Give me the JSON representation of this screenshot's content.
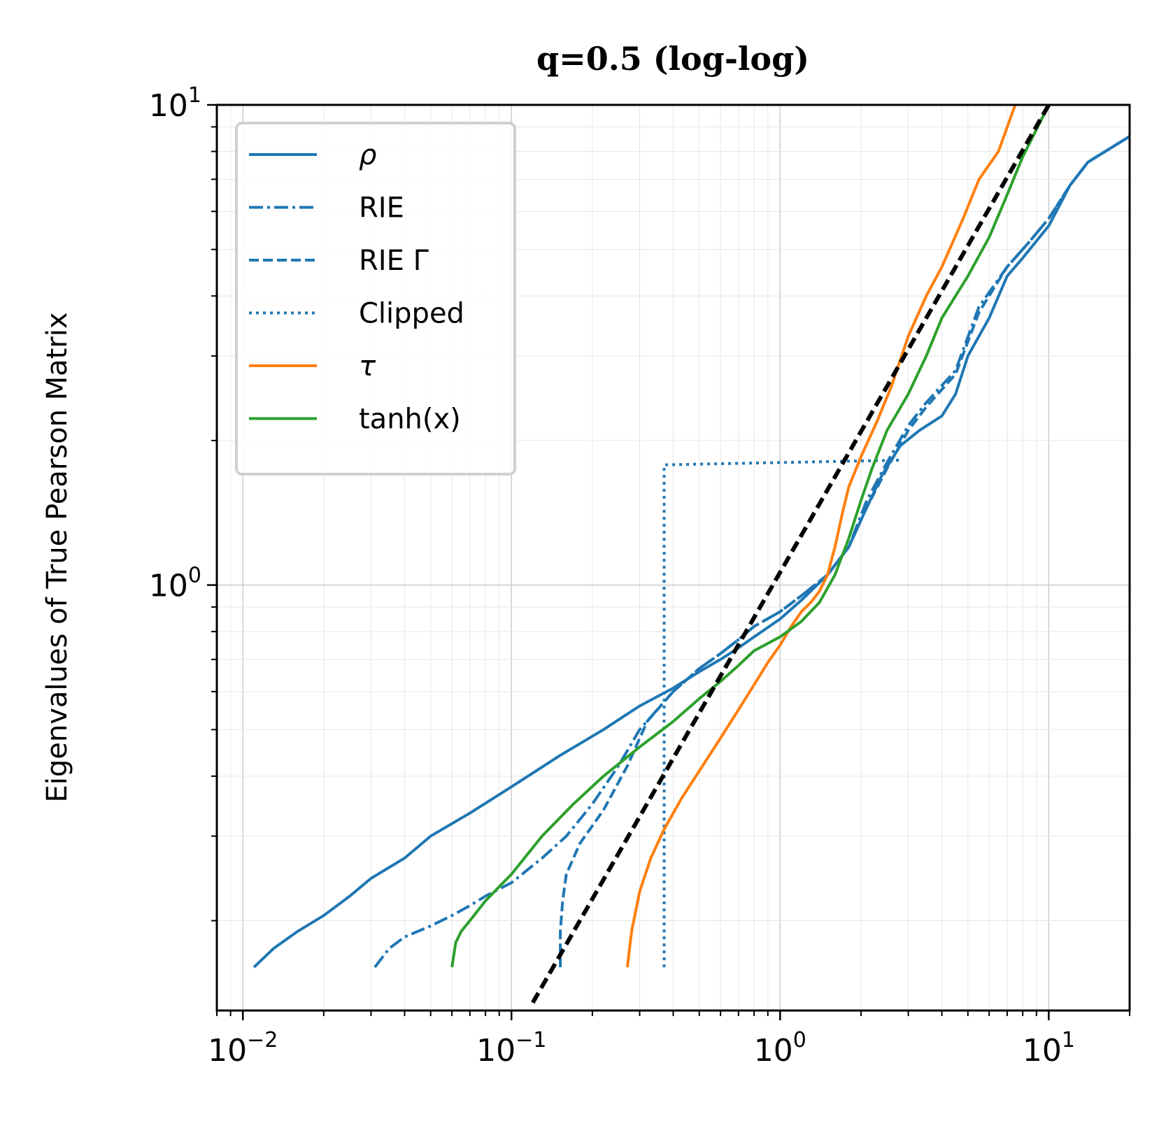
{
  "chart_data": {
    "type": "line",
    "title": "q=0.5 (log-log)",
    "xlabel": "",
    "ylabel": "Eigenvalues of True Pearson Matrix",
    "xscale": "log",
    "yscale": "log",
    "xlim": [
      0.008,
      20
    ],
    "ylim": [
      0.13,
      10
    ],
    "grid": true,
    "legend_position": "upper-left",
    "x_ticks": [
      {
        "value": 0.01,
        "base": "10",
        "exp": "−2"
      },
      {
        "value": 0.1,
        "base": "10",
        "exp": "−1"
      },
      {
        "value": 1,
        "base": "10",
        "exp": "0"
      },
      {
        "value": 10,
        "base": "10",
        "exp": "1"
      }
    ],
    "y_ticks": [
      {
        "value": 1,
        "base": "10",
        "exp": "0"
      },
      {
        "value": 10,
        "base": "10",
        "exp": "1"
      }
    ],
    "series": [
      {
        "name": "ρ",
        "legend_label": "ρ",
        "italic": true,
        "color": "#1f77b4",
        "dash": "solid",
        "points": [
          [
            0.011,
            0.16
          ],
          [
            0.013,
            0.175
          ],
          [
            0.016,
            0.19
          ],
          [
            0.02,
            0.205
          ],
          [
            0.025,
            0.225
          ],
          [
            0.03,
            0.245
          ],
          [
            0.04,
            0.27
          ],
          [
            0.05,
            0.3
          ],
          [
            0.07,
            0.335
          ],
          [
            0.1,
            0.38
          ],
          [
            0.15,
            0.44
          ],
          [
            0.22,
            0.5
          ],
          [
            0.3,
            0.56
          ],
          [
            0.4,
            0.61
          ],
          [
            0.5,
            0.66
          ],
          [
            0.6,
            0.7
          ],
          [
            0.7,
            0.74
          ],
          [
            0.8,
            0.78
          ],
          [
            1.0,
            0.85
          ],
          [
            1.2,
            0.93
          ],
          [
            1.5,
            1.05
          ],
          [
            1.8,
            1.2
          ],
          [
            2.1,
            1.45
          ],
          [
            2.4,
            1.7
          ],
          [
            2.8,
            1.95
          ],
          [
            3.3,
            2.1
          ],
          [
            4.0,
            2.25
          ],
          [
            4.5,
            2.5
          ],
          [
            5.0,
            3.0
          ],
          [
            6.0,
            3.6
          ],
          [
            7.0,
            4.4
          ],
          [
            8.0,
            4.8
          ],
          [
            10.0,
            5.6
          ],
          [
            12.0,
            6.8
          ],
          [
            14.0,
            7.6
          ],
          [
            20.0,
            8.6
          ]
        ]
      },
      {
        "name": "RIE",
        "legend_label": "RIE",
        "italic": false,
        "color": "#1f77b4",
        "dash": "dashdot",
        "points": [
          [
            0.031,
            0.16
          ],
          [
            0.035,
            0.175
          ],
          [
            0.04,
            0.185
          ],
          [
            0.05,
            0.195
          ],
          [
            0.06,
            0.205
          ],
          [
            0.07,
            0.215
          ],
          [
            0.08,
            0.225
          ],
          [
            0.1,
            0.24
          ],
          [
            0.13,
            0.27
          ],
          [
            0.16,
            0.3
          ],
          [
            0.2,
            0.35
          ],
          [
            0.25,
            0.42
          ],
          [
            0.3,
            0.5
          ],
          [
            0.4,
            0.6
          ],
          [
            0.5,
            0.67
          ],
          [
            0.6,
            0.72
          ],
          [
            0.7,
            0.77
          ],
          [
            0.8,
            0.82
          ],
          [
            1.0,
            0.88
          ],
          [
            1.2,
            0.95
          ],
          [
            1.5,
            1.05
          ],
          [
            1.8,
            1.2
          ],
          [
            2.1,
            1.5
          ],
          [
            2.5,
            1.8
          ],
          [
            3.0,
            2.15
          ],
          [
            3.5,
            2.4
          ],
          [
            4.5,
            2.8
          ],
          [
            5.5,
            3.8
          ],
          [
            7.0,
            4.6
          ],
          [
            8.5,
            5.2
          ],
          [
            10.0,
            5.8
          ],
          [
            12.0,
            6.8
          ],
          [
            14.0,
            7.6
          ],
          [
            20.0,
            8.6
          ]
        ]
      },
      {
        "name": "RIE Γ",
        "legend_label": "RIE Γ",
        "italic": false,
        "color": "#1f77b4",
        "dash": "dashed",
        "points": [
          [
            0.152,
            0.16
          ],
          [
            0.152,
            0.19
          ],
          [
            0.155,
            0.22
          ],
          [
            0.16,
            0.25
          ],
          [
            0.18,
            0.29
          ],
          [
            0.22,
            0.34
          ],
          [
            0.27,
            0.42
          ],
          [
            0.32,
            0.52
          ],
          [
            0.4,
            0.6
          ],
          [
            0.5,
            0.67
          ],
          [
            0.6,
            0.72
          ],
          [
            0.7,
            0.77
          ],
          [
            0.8,
            0.82
          ],
          [
            1.0,
            0.88
          ],
          [
            1.2,
            0.95
          ],
          [
            1.5,
            1.05
          ],
          [
            1.8,
            1.2
          ],
          [
            2.1,
            1.45
          ],
          [
            2.5,
            1.75
          ],
          [
            3.0,
            2.1
          ],
          [
            3.5,
            2.35
          ],
          [
            4.5,
            2.75
          ],
          [
            5.5,
            3.7
          ],
          [
            7.0,
            4.6
          ],
          [
            8.5,
            5.2
          ],
          [
            10.0,
            5.8
          ],
          [
            12.0,
            6.8
          ],
          [
            14.0,
            7.6
          ],
          [
            20.0,
            8.6
          ]
        ]
      },
      {
        "name": "Clipped",
        "legend_label": "Clipped",
        "italic": false,
        "color": "#1f77b4",
        "dash": "dotted",
        "points": [
          [
            0.37,
            0.16
          ],
          [
            0.37,
            1.78
          ],
          [
            2.8,
            1.82
          ]
        ]
      },
      {
        "name": "τ",
        "legend_label": "τ",
        "italic": true,
        "color": "#ff7f0e",
        "dash": "solid",
        "points": [
          [
            0.27,
            0.16
          ],
          [
            0.28,
            0.19
          ],
          [
            0.3,
            0.23
          ],
          [
            0.33,
            0.27
          ],
          [
            0.37,
            0.31
          ],
          [
            0.43,
            0.36
          ],
          [
            0.5,
            0.41
          ],
          [
            0.6,
            0.48
          ],
          [
            0.7,
            0.55
          ],
          [
            0.8,
            0.62
          ],
          [
            0.9,
            0.69
          ],
          [
            1.0,
            0.75
          ],
          [
            1.1,
            0.82
          ],
          [
            1.2,
            0.88
          ],
          [
            1.3,
            0.92
          ],
          [
            1.4,
            0.97
          ],
          [
            1.5,
            1.05
          ],
          [
            1.6,
            1.2
          ],
          [
            1.7,
            1.4
          ],
          [
            1.8,
            1.6
          ],
          [
            2.0,
            1.85
          ],
          [
            2.3,
            2.2
          ],
          [
            2.6,
            2.6
          ],
          [
            3.0,
            3.3
          ],
          [
            3.5,
            4.0
          ],
          [
            4.0,
            4.6
          ],
          [
            4.8,
            5.8
          ],
          [
            5.5,
            7.0
          ],
          [
            6.5,
            8.0
          ],
          [
            7.5,
            10.0
          ]
        ]
      },
      {
        "name": "tanh(x)",
        "legend_label": "tanh(x)",
        "italic": false,
        "color": "#2ca02c",
        "dash": "solid",
        "points": [
          [
            0.06,
            0.16
          ],
          [
            0.062,
            0.18
          ],
          [
            0.065,
            0.19
          ],
          [
            0.07,
            0.2
          ],
          [
            0.08,
            0.22
          ],
          [
            0.1,
            0.25
          ],
          [
            0.13,
            0.3
          ],
          [
            0.17,
            0.35
          ],
          [
            0.22,
            0.4
          ],
          [
            0.3,
            0.46
          ],
          [
            0.4,
            0.52
          ],
          [
            0.5,
            0.58
          ],
          [
            0.6,
            0.63
          ],
          [
            0.7,
            0.68
          ],
          [
            0.8,
            0.73
          ],
          [
            1.0,
            0.78
          ],
          [
            1.2,
            0.84
          ],
          [
            1.4,
            0.92
          ],
          [
            1.6,
            1.05
          ],
          [
            1.8,
            1.25
          ],
          [
            2.0,
            1.5
          ],
          [
            2.2,
            1.75
          ],
          [
            2.5,
            2.1
          ],
          [
            3.0,
            2.5
          ],
          [
            3.5,
            3.0
          ],
          [
            4.0,
            3.6
          ],
          [
            5.0,
            4.4
          ],
          [
            6.0,
            5.3
          ],
          [
            7.0,
            6.5
          ],
          [
            8.0,
            7.8
          ],
          [
            10.0,
            10.0
          ]
        ]
      },
      {
        "name": "reference",
        "legend_label": "",
        "italic": false,
        "color": "#000000",
        "dash": "refdash",
        "points": [
          [
            0.12,
            0.135
          ],
          [
            10.0,
            10.0
          ]
        ]
      }
    ]
  }
}
